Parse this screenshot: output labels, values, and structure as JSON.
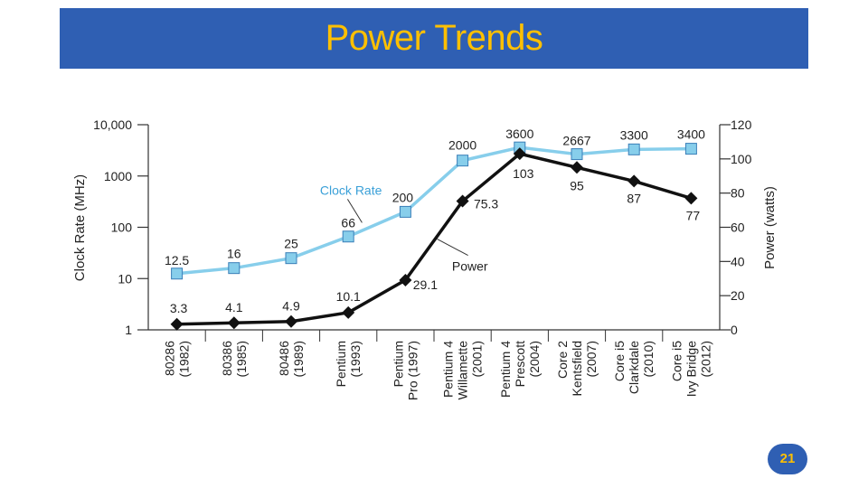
{
  "slide": {
    "title": "Power Trends",
    "page_number": "21",
    "colors": {
      "title_bar": "#2f5fb3",
      "title_text": "#ffc000"
    }
  },
  "chart_data": {
    "type": "line",
    "title": "",
    "categories": [
      [
        "80286",
        "(1982)"
      ],
      [
        "80386",
        "(1985)"
      ],
      [
        "80486",
        "(1989)"
      ],
      [
        "Pentium",
        "(1993)"
      ],
      [
        "Pentium",
        "Pro (1997)"
      ],
      [
        "Pentium 4",
        "Willamette",
        "(2001)"
      ],
      [
        "Pentium 4",
        "Prescott",
        "(2004)"
      ],
      [
        "Core 2",
        "Kentsfield",
        "(2007)"
      ],
      [
        "Core i5",
        "Clarkdale",
        "(2010)"
      ],
      [
        "Core i5",
        "Ivy Bridge",
        "(2012)"
      ]
    ],
    "y_left": {
      "label": "Clock Rate (MHz)",
      "scale": "log",
      "range": [
        1,
        10000
      ],
      "ticks": [
        1,
        10,
        100,
        1000,
        10000
      ],
      "tick_labels": [
        "1",
        "10",
        "100",
        "1000",
        "10,000"
      ]
    },
    "y_right": {
      "label": "Power (watts)",
      "scale": "linear",
      "range": [
        0,
        120
      ],
      "ticks": [
        0,
        20,
        40,
        60,
        80,
        100,
        120
      ],
      "tick_labels": [
        "0",
        "20",
        "40",
        "60",
        "80",
        "100",
        "120"
      ]
    },
    "series": [
      {
        "name": "Clock Rate",
        "axis": "left",
        "color": "#87ceeb",
        "marker": "square",
        "values": [
          12.5,
          16,
          25,
          66,
          200,
          2000,
          3600,
          2667,
          3300,
          3400
        ],
        "labels": [
          "12.5",
          "16",
          "25",
          "66",
          "200",
          "2000",
          "3600",
          "2667",
          "3300",
          "3400"
        ]
      },
      {
        "name": "Power",
        "axis": "right",
        "color": "#111111",
        "marker": "diamond",
        "values": [
          3.3,
          4.1,
          4.9,
          10.1,
          29.1,
          75.3,
          103,
          95,
          87,
          77
        ],
        "labels": [
          "3.3",
          "4.1",
          "4.9",
          "10.1",
          "29.1",
          "75.3",
          "103",
          "95",
          "87",
          "77"
        ]
      }
    ],
    "grid": false
  }
}
